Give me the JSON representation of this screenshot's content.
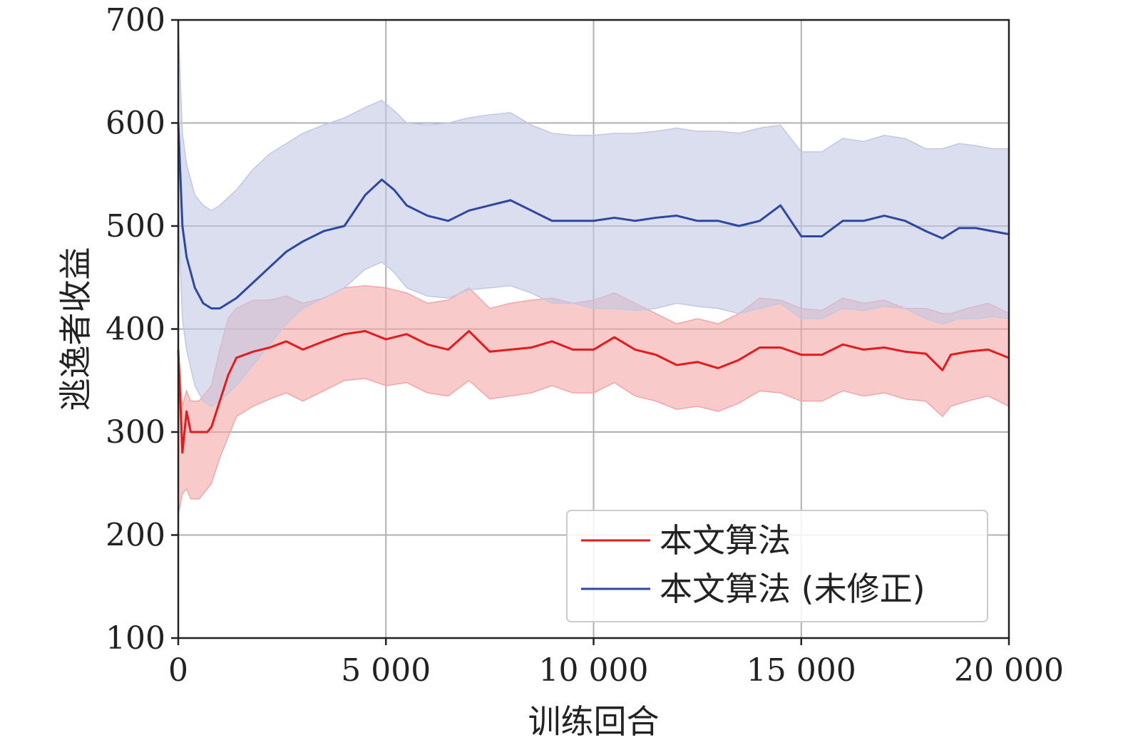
{
  "chart_data": {
    "type": "line",
    "title": "",
    "xlabel": "训练回合",
    "ylabel": "逃逸者收益",
    "xlim": [
      0,
      20000
    ],
    "ylim": [
      100,
      700
    ],
    "xticks": [
      0,
      5000,
      10000,
      15000,
      20000
    ],
    "xtick_labels": [
      "0",
      "5 000",
      "10 000",
      "15 000",
      "20 000"
    ],
    "yticks": [
      100,
      200,
      300,
      400,
      500,
      600,
      700
    ],
    "ytick_labels": [
      "100",
      "200",
      "300",
      "400",
      "500",
      "600",
      "700"
    ],
    "grid": true,
    "legend_position": "bottom-right",
    "series": [
      {
        "name": "本文算法",
        "color": "#e41a1c",
        "band_color": "#f4a6a7",
        "x": [
          0,
          100,
          200,
          300,
          500,
          700,
          800,
          1000,
          1200,
          1400,
          1800,
          2200,
          2600,
          3000,
          3500,
          4000,
          4500,
          5000,
          5500,
          6000,
          6500,
          7000,
          7500,
          8000,
          8500,
          9000,
          9500,
          10000,
          10500,
          11000,
          11500,
          12000,
          12500,
          13000,
          13500,
          14000,
          14500,
          15000,
          15500,
          16000,
          16500,
          17000,
          17500,
          18000,
          18400,
          18600,
          19000,
          19500,
          20000
        ],
        "y": [
          380,
          280,
          320,
          300,
          300,
          300,
          305,
          330,
          355,
          372,
          378,
          382,
          388,
          380,
          388,
          395,
          398,
          390,
          395,
          385,
          380,
          398,
          378,
          380,
          382,
          388,
          380,
          380,
          392,
          380,
          375,
          365,
          368,
          362,
          370,
          382,
          382,
          375,
          375,
          385,
          380,
          382,
          378,
          376,
          360,
          375,
          378,
          380,
          372
        ],
        "upper": [
          380,
          325,
          340,
          330,
          330,
          340,
          345,
          380,
          410,
          420,
          428,
          428,
          432,
          425,
          430,
          440,
          442,
          440,
          435,
          425,
          428,
          440,
          420,
          425,
          428,
          430,
          425,
          428,
          435,
          425,
          415,
          405,
          410,
          405,
          415,
          430,
          428,
          420,
          418,
          430,
          425,
          428,
          420,
          420,
          415,
          415,
          420,
          425,
          415
        ],
        "lower": [
          220,
          240,
          245,
          235,
          235,
          245,
          250,
          275,
          295,
          315,
          325,
          332,
          338,
          330,
          340,
          350,
          352,
          345,
          348,
          338,
          335,
          350,
          332,
          335,
          338,
          345,
          338,
          338,
          348,
          335,
          330,
          322,
          325,
          320,
          328,
          340,
          338,
          330,
          330,
          340,
          335,
          338,
          332,
          330,
          315,
          325,
          330,
          335,
          325
        ]
      },
      {
        "name": "本文算法 (未修正)",
        "color": "#2c48a0",
        "band_color": "#c2c8e2",
        "x": [
          0,
          50,
          100,
          200,
          400,
          600,
          800,
          1000,
          1400,
          1800,
          2200,
          2600,
          3000,
          3500,
          4000,
          4500,
          4900,
          5200,
          5500,
          6000,
          6500,
          7000,
          7500,
          8000,
          8500,
          9000,
          9500,
          10000,
          10500,
          11000,
          11500,
          12000,
          12500,
          13000,
          13500,
          14000,
          14500,
          15000,
          15500,
          16000,
          16500,
          17000,
          17500,
          18000,
          18400,
          18800,
          19200,
          19600,
          20000
        ],
        "y": [
          600,
          550,
          500,
          470,
          440,
          425,
          420,
          420,
          430,
          445,
          460,
          475,
          485,
          495,
          500,
          530,
          545,
          535,
          520,
          510,
          505,
          515,
          520,
          525,
          515,
          505,
          505,
          505,
          508,
          505,
          508,
          510,
          505,
          505,
          500,
          505,
          520,
          490,
          490,
          505,
          505,
          510,
          505,
          495,
          488,
          498,
          498,
          495,
          492
        ],
        "upper": [
          700,
          640,
          590,
          560,
          530,
          520,
          515,
          520,
          535,
          555,
          570,
          580,
          590,
          598,
          605,
          615,
          622,
          612,
          600,
          598,
          600,
          605,
          608,
          610,
          598,
          590,
          588,
          588,
          590,
          590,
          592,
          595,
          592,
          592,
          590,
          595,
          598,
          572,
          572,
          585,
          582,
          588,
          585,
          575,
          575,
          580,
          578,
          575,
          575
        ],
        "lower": [
          500,
          460,
          410,
          380,
          345,
          330,
          325,
          330,
          345,
          365,
          385,
          405,
          420,
          430,
          440,
          458,
          465,
          455,
          440,
          432,
          430,
          438,
          440,
          442,
          435,
          425,
          425,
          420,
          420,
          418,
          420,
          425,
          422,
          420,
          415,
          420,
          425,
          410,
          410,
          420,
          418,
          422,
          420,
          410,
          405,
          410,
          410,
          412,
          410
        ]
      }
    ]
  }
}
